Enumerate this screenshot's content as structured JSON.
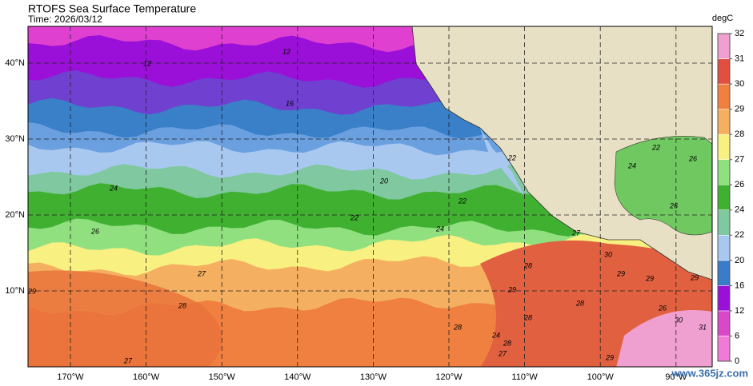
{
  "header": {
    "title": "RTOFS Sea Surface Temperature",
    "time": "Time: 2026/03/12"
  },
  "map": {
    "lon_ticks": [
      {
        "value": -170,
        "label": "170°W"
      },
      {
        "value": -160,
        "label": "160°W"
      },
      {
        "value": -150,
        "label": "150°W"
      },
      {
        "value": -140,
        "label": "140°W"
      },
      {
        "value": -130,
        "label": "130°W"
      },
      {
        "value": -120,
        "label": "120°W"
      },
      {
        "value": -110,
        "label": "110°W"
      },
      {
        "value": -100,
        "label": "100°W"
      },
      {
        "value": -90,
        "label": "90°W"
      }
    ],
    "lat_ticks": [
      {
        "value": 40,
        "label": "40°N"
      },
      {
        "value": 30,
        "label": "30°N"
      },
      {
        "value": 20,
        "label": "20°N"
      },
      {
        "value": 10,
        "label": "10°N"
      }
    ],
    "contour_labels": [
      "12",
      "12",
      "16",
      "20",
      "22",
      "24",
      "22",
      "24",
      "26",
      "24",
      "27",
      "28",
      "29",
      "28",
      "27",
      "28",
      "29",
      "30",
      "29",
      "30",
      "29",
      "28",
      "27",
      "26",
      "22",
      "22",
      "24",
      "26",
      "29",
      "31",
      "29",
      "28",
      "28",
      "27",
      "26"
    ]
  },
  "colorbar": {
    "unit": "degC",
    "ticks": [
      0,
      6,
      12,
      16,
      20,
      22,
      24,
      26,
      27,
      28,
      29,
      30,
      31,
      32
    ],
    "colors": [
      "#f07ad8",
      "#d848c8",
      "#9a10d8",
      "#3a7cc8",
      "#a8c8f0",
      "#80c8a0",
      "#40b030",
      "#90e080",
      "#f8f080",
      "#f4b060",
      "#f08040",
      "#e05040",
      "#f0a0d0"
    ]
  },
  "watermark": "www.365jz.com"
}
